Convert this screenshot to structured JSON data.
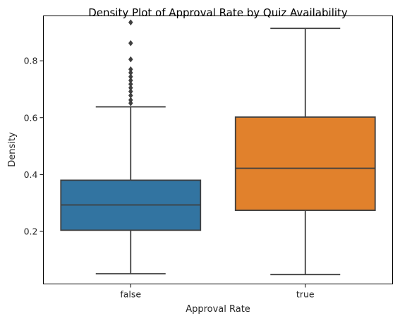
{
  "chart_data": {
    "type": "box",
    "title": "Density Plot of Approval Rate by Quiz Availability",
    "xlabel": "Approval Rate",
    "ylabel": "Density",
    "ylim": [
      0.015,
      0.958
    ],
    "yticks": [
      0.2,
      0.4,
      0.6,
      0.8
    ],
    "ytick_labels": [
      "0.2",
      "0.4",
      "0.6",
      "0.8"
    ],
    "categories": [
      "false",
      "true"
    ],
    "grid": false,
    "legend": "none",
    "boxes": [
      {
        "category": "false",
        "color": "#3274a1",
        "whisker_low": 0.051,
        "q1": 0.204,
        "median": 0.293,
        "q3": 0.38,
        "whisker_high": 0.638,
        "outliers": [
          0.651,
          0.662,
          0.678,
          0.692,
          0.705,
          0.718,
          0.731,
          0.744,
          0.758,
          0.77,
          0.805,
          0.862,
          0.935
        ]
      },
      {
        "category": "true",
        "color": "#e1812c",
        "whisker_low": 0.048,
        "q1": 0.274,
        "median": 0.422,
        "q3": 0.602,
        "whisker_high": 0.914,
        "outliers": []
      }
    ]
  }
}
